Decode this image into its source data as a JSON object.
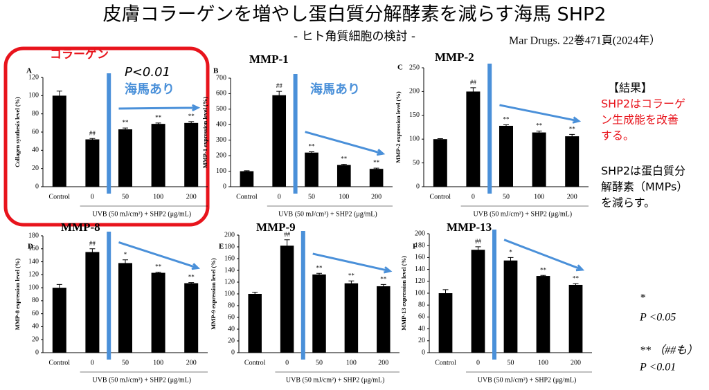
{
  "title": "皮膚コラーゲンを増やし蛋白質分解酵素を減らす海馬 SHP2",
  "subtitle": "- ヒト角質細胞の検討 -",
  "citation": "Mar Drugs. 22巻471頁(2024年）",
  "notes": {
    "heading": "【結果】",
    "finding1": [
      "SHP2はコラーゲ",
      "ン生成能を改善",
      "する。"
    ],
    "finding2": [
      "SHP2は蛋白質分",
      "解酵素（MMPs）",
      "を減らす。"
    ],
    "legend": [
      "*",
      "P <0.05",
      "** （##も）",
      "P <0.01"
    ]
  },
  "chart_data": [
    {
      "type": "bar",
      "panel": "A",
      "title": "コラーゲン",
      "ylabel": "Collagen synthesis level (%)",
      "xlabel": "UVB (50 mJ/cm²) + SHP2 (μg/mL)",
      "categories": [
        "Control",
        "0",
        "50",
        "100",
        "200"
      ],
      "values": [
        100,
        52,
        63,
        69,
        70
      ],
      "errors": [
        5,
        1,
        1.5,
        1,
        1.5
      ],
      "significance": [
        null,
        "##",
        "**",
        "**",
        "**"
      ],
      "annotations": [
        "P<0.01",
        "海馬あり"
      ],
      "color": "#000000",
      "ylim": [
        0,
        120
      ],
      "yticks": [
        0,
        20,
        40,
        60,
        80,
        100,
        120
      ]
    },
    {
      "type": "bar",
      "panel": "B",
      "title": "MMP-1",
      "ylabel": "MMP-1 expression level (%)",
      "xlabel": "UVB (50 mJ/cm²) + SHP2 (μg/mL)",
      "categories": [
        "Control",
        "0",
        "50",
        "100",
        "200"
      ],
      "values": [
        100,
        590,
        220,
        140,
        115
      ],
      "errors": [
        3,
        25,
        5,
        5,
        5
      ],
      "significance": [
        null,
        "##",
        "**",
        "**",
        "**"
      ],
      "annotations": [
        "海馬あり"
      ],
      "color": "#000000",
      "ylim": [
        0,
        700
      ],
      "yticks": [
        0,
        100,
        200,
        300,
        400,
        500,
        600,
        700
      ]
    },
    {
      "type": "bar",
      "panel": "C",
      "title": "MMP-2",
      "ylabel": "MMP-2 expression level (%)",
      "xlabel": "UVB (50 mJ/cm²) + SHP2 (μg/mL)",
      "categories": [
        "Control",
        "0",
        "50",
        "100",
        "200"
      ],
      "values": [
        100,
        200,
        128,
        114,
        106
      ],
      "errors": [
        1,
        8,
        2,
        3,
        4
      ],
      "significance": [
        null,
        "##",
        "**",
        "**",
        "**"
      ],
      "color": "#000000",
      "ylim": [
        0,
        250
      ],
      "yticks": [
        0,
        50,
        100,
        150,
        200,
        250
      ]
    },
    {
      "type": "bar",
      "panel": "D",
      "title": "MMP-8",
      "ylabel": "MMP-8 expression level (%)",
      "xlabel": "UVB (50 mJ/cm²) + SHP2 (μg/mL)",
      "categories": [
        "Control",
        "0",
        "50",
        "100",
        "200"
      ],
      "values": [
        100,
        155,
        138,
        123,
        107
      ],
      "errors": [
        5,
        5,
        5,
        1,
        1
      ],
      "significance": [
        null,
        "##",
        "*",
        "**",
        "**"
      ],
      "color": "#000000",
      "ylim": [
        0,
        180
      ],
      "yticks": [
        0,
        20,
        40,
        60,
        80,
        100,
        120,
        140,
        160,
        180
      ]
    },
    {
      "type": "bar",
      "panel": "E",
      "title": "MMP-9",
      "ylabel": "MMP-9 expression level (%)",
      "xlabel": "UVB (50 mJ/cm²) + SHP2 (μg/mL)",
      "categories": [
        "Control",
        "0",
        "50",
        "100",
        "200"
      ],
      "values": [
        100,
        182,
        133,
        118,
        113
      ],
      "errors": [
        3,
        10,
        2,
        4,
        3
      ],
      "significance": [
        null,
        "##",
        "**",
        "**",
        "**"
      ],
      "color": "#000000",
      "ylim": [
        0,
        200
      ],
      "yticks": [
        0,
        20,
        40,
        60,
        80,
        100,
        120,
        140,
        160,
        180,
        200
      ]
    },
    {
      "type": "bar",
      "panel": "F",
      "title": "MMP-13",
      "ylabel": "MMP-13 expression level (%)",
      "xlabel": "UVB (50 mJ/cm²) + SHP2 (μg/mL)",
      "categories": [
        "Control",
        "0",
        "50",
        "100",
        "200"
      ],
      "values": [
        100,
        173,
        155,
        129,
        114
      ],
      "errors": [
        6,
        5,
        5,
        1,
        2
      ],
      "significance": [
        null,
        "##",
        "*",
        "**",
        "**"
      ],
      "color": "#000000",
      "ylim": [
        0,
        200
      ],
      "yticks": [
        0,
        20,
        40,
        60,
        80,
        100,
        120,
        140,
        160,
        180,
        200
      ]
    }
  ]
}
